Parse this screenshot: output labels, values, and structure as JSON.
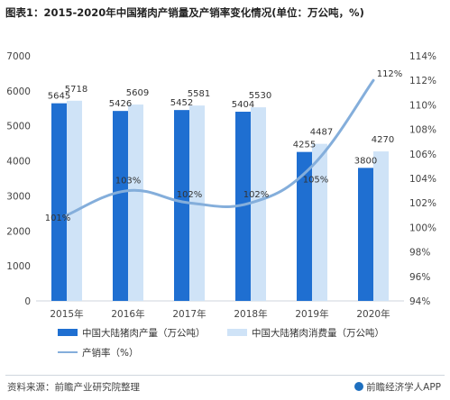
{
  "title": "图表1：2015-2020年中国猪肉产销量及产销率变化情况(单位：万公吨，%)",
  "source": "资料来源：前瞻产业研究院整理",
  "brand": "前瞻经济学人APP",
  "colors": {
    "production": "#1f6fd1",
    "consumption": "#cfe3f7",
    "rate": "#84aedb",
    "axis": "#cfd6de",
    "text": "#444444"
  },
  "chart_data": {
    "type": "bar",
    "categories": [
      "2015年",
      "2016年",
      "2017年",
      "2018年",
      "2019年",
      "2020年"
    ],
    "series": [
      {
        "name": "中国大陆猪肉产量（万公吨）",
        "axis": "left",
        "type": "bar",
        "values": [
          5645,
          5426,
          5452,
          5404,
          4255,
          3800
        ]
      },
      {
        "name": "中国大陆猪肉消费量（万公吨）",
        "axis": "left",
        "type": "bar",
        "values": [
          5718,
          5609,
          5581,
          5530,
          4487,
          4270
        ]
      },
      {
        "name": "产销率（%）",
        "axis": "right",
        "type": "line",
        "values": [
          101,
          103,
          102,
          102,
          105,
          112
        ],
        "value_labels": [
          "101%",
          "103%",
          "102%",
          "102%",
          "105%",
          "112%"
        ]
      }
    ],
    "ylim_left": [
      0,
      7000
    ],
    "yticks_left": [
      0,
      1000,
      2000,
      3000,
      4000,
      5000,
      6000,
      7000
    ],
    "ylim_right": [
      94,
      114
    ],
    "yticks_right": [
      94,
      96,
      98,
      100,
      102,
      104,
      106,
      108,
      110,
      112,
      114
    ],
    "ytick_right_labels": [
      "94%",
      "96%",
      "98%",
      "100%",
      "102%",
      "104%",
      "106%",
      "108%",
      "110%",
      "112%",
      "114%"
    ],
    "legend_position": "bottom",
    "grid": false
  }
}
